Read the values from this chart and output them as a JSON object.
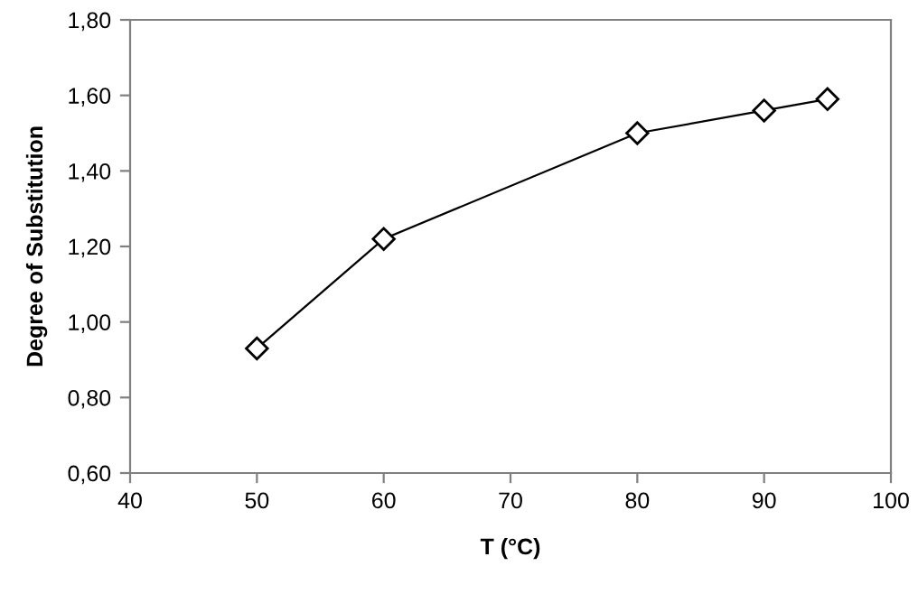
{
  "chart_data": {
    "type": "line",
    "xlabel": "T (°C)",
    "ylabel": "Degree of Substitution",
    "x": [
      50,
      60,
      80,
      90,
      95
    ],
    "series": [
      {
        "color": "#000000",
        "values": [
          0.93,
          1.22,
          1.5,
          1.56,
          1.59
        ]
      }
    ],
    "xlim": [
      40,
      100
    ],
    "xticks": [
      40,
      50,
      60,
      70,
      80,
      90,
      100
    ],
    "ylim": [
      0.6,
      1.8
    ],
    "yticks": [
      {
        "value": 0.6,
        "label": "0,60"
      },
      {
        "value": 0.8,
        "label": "0,80"
      },
      {
        "value": 1.0,
        "label": "1,00"
      },
      {
        "value": 1.2,
        "label": "1,20"
      },
      {
        "value": 1.4,
        "label": "1,40"
      },
      {
        "value": 1.6,
        "label": "1,60"
      },
      {
        "value": 1.8,
        "label": "1,80"
      }
    ],
    "marker": "diamond",
    "line_style": "solid",
    "grid": false,
    "legend": false
  }
}
